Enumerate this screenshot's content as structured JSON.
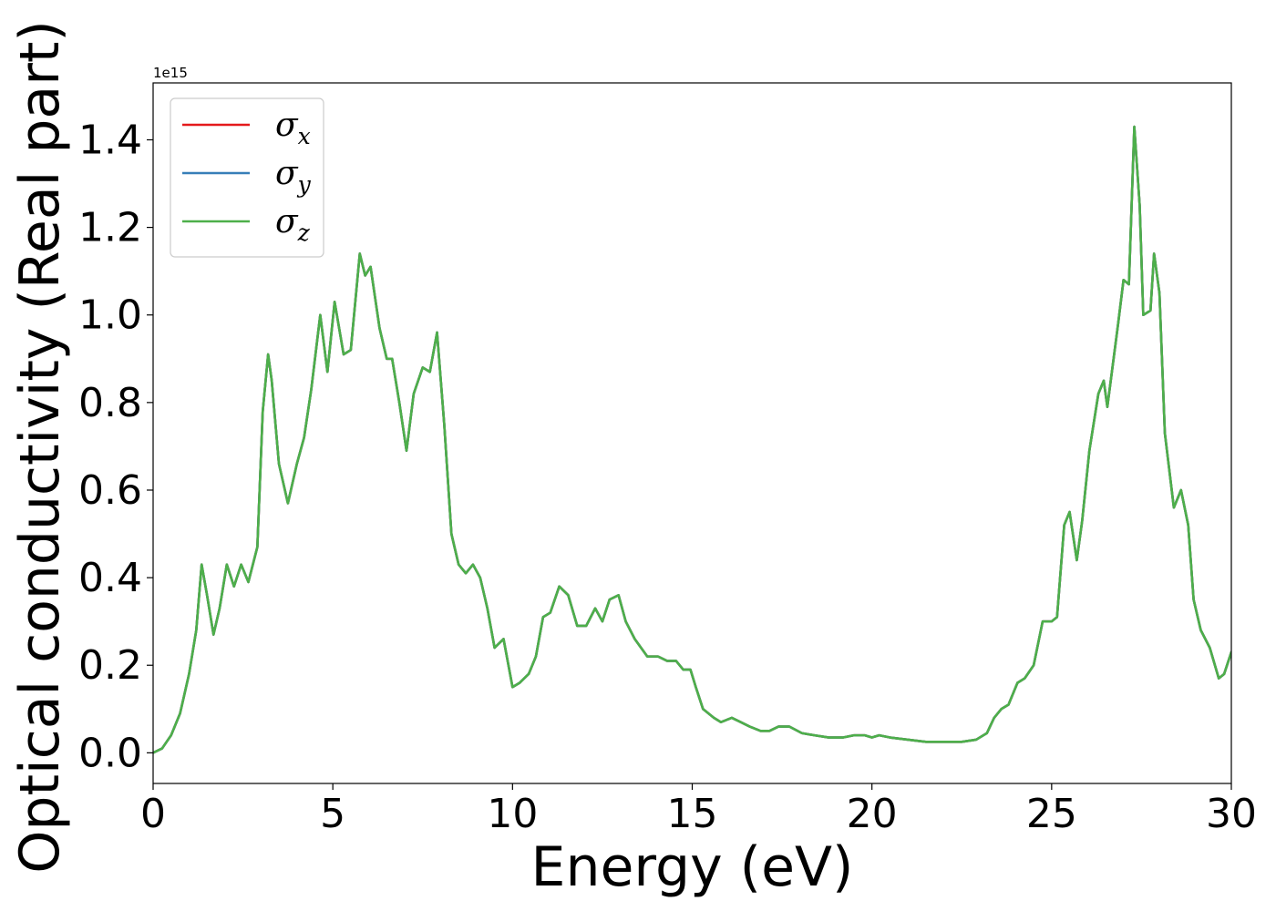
{
  "chart_data": {
    "type": "line",
    "xlabel": "Energy (eV)",
    "ylabel": "Optical conductivity (Real part)",
    "y_offset_label": "1e15",
    "y_scale": 1000000000000000.0,
    "xlim": [
      0,
      30
    ],
    "ylim": [
      -0.07,
      1.53
    ],
    "xticks": [
      0,
      5,
      10,
      15,
      20,
      25,
      30
    ],
    "xtick_labels": [
      "0",
      "5",
      "10",
      "15",
      "20",
      "25",
      "30"
    ],
    "yticks": [
      0.0,
      0.2,
      0.4,
      0.6,
      0.8,
      1.0,
      1.2,
      1.4
    ],
    "ytick_labels": [
      "0.0",
      "0.2",
      "0.4",
      "0.6",
      "0.8",
      "1.0",
      "1.2",
      "1.4"
    ],
    "grid": false,
    "legend_position": "top-left",
    "x": [
      0,
      0.25,
      0.5,
      0.75,
      1.0,
      1.2,
      1.35,
      1.5,
      1.68,
      1.85,
      2.05,
      2.25,
      2.45,
      2.65,
      2.9,
      3.05,
      3.2,
      3.3,
      3.5,
      3.75,
      4.0,
      4.2,
      4.4,
      4.65,
      4.85,
      5.05,
      5.3,
      5.5,
      5.75,
      5.9,
      6.05,
      6.3,
      6.5,
      6.65,
      6.85,
      7.05,
      7.25,
      7.5,
      7.7,
      7.9,
      8.1,
      8.3,
      8.5,
      8.7,
      8.9,
      9.1,
      9.3,
      9.5,
      9.75,
      10.0,
      10.2,
      10.45,
      10.65,
      10.85,
      11.05,
      11.3,
      11.55,
      11.8,
      12.05,
      12.3,
      12.5,
      12.7,
      12.95,
      13.15,
      13.4,
      13.75,
      14.05,
      14.3,
      14.55,
      14.75,
      14.95,
      15.1,
      15.3,
      15.6,
      15.8,
      16.1,
      16.35,
      16.6,
      16.9,
      17.15,
      17.4,
      17.7,
      18.05,
      18.4,
      18.8,
      19.2,
      19.5,
      19.8,
      20.0,
      20.2,
      20.5,
      21.0,
      21.5,
      22.0,
      22.5,
      22.9,
      23.2,
      23.4,
      23.6,
      23.8,
      24.05,
      24.25,
      24.5,
      24.75,
      25.0,
      25.15,
      25.35,
      25.5,
      25.7,
      25.85,
      26.05,
      26.3,
      26.45,
      26.55,
      26.85,
      27.0,
      27.15,
      27.3,
      27.45,
      27.55,
      27.75,
      27.85,
      28.0,
      28.15,
      28.4,
      28.6,
      28.8,
      28.95,
      29.15,
      29.4,
      29.65,
      29.8,
      30.0
    ],
    "series": [
      {
        "name": "σx",
        "color": "#e41a1c",
        "y": [
          0.0,
          0.01,
          0.04,
          0.09,
          0.18,
          0.28,
          0.43,
          0.36,
          0.27,
          0.33,
          0.43,
          0.38,
          0.43,
          0.39,
          0.47,
          0.78,
          0.91,
          0.85,
          0.66,
          0.57,
          0.66,
          0.72,
          0.83,
          1.0,
          0.87,
          1.03,
          0.91,
          0.92,
          1.14,
          1.09,
          1.11,
          0.97,
          0.9,
          0.9,
          0.8,
          0.69,
          0.82,
          0.88,
          0.87,
          0.96,
          0.75,
          0.5,
          0.43,
          0.41,
          0.43,
          0.4,
          0.33,
          0.24,
          0.26,
          0.15,
          0.16,
          0.18,
          0.22,
          0.31,
          0.32,
          0.38,
          0.36,
          0.29,
          0.29,
          0.33,
          0.3,
          0.35,
          0.36,
          0.3,
          0.26,
          0.22,
          0.22,
          0.21,
          0.21,
          0.19,
          0.19,
          0.15,
          0.1,
          0.08,
          0.07,
          0.08,
          0.07,
          0.06,
          0.05,
          0.05,
          0.06,
          0.06,
          0.045,
          0.04,
          0.035,
          0.035,
          0.04,
          0.04,
          0.035,
          0.04,
          0.035,
          0.03,
          0.025,
          0.025,
          0.025,
          0.03,
          0.045,
          0.08,
          0.1,
          0.11,
          0.16,
          0.17,
          0.2,
          0.3,
          0.3,
          0.31,
          0.52,
          0.55,
          0.44,
          0.53,
          0.69,
          0.82,
          0.85,
          0.79,
          0.98,
          1.08,
          1.07,
          1.43,
          1.25,
          1.0,
          1.01,
          1.14,
          1.05,
          0.73,
          0.56,
          0.6,
          0.52,
          0.35,
          0.28,
          0.24,
          0.17,
          0.18,
          0.23
        ]
      },
      {
        "name": "σy",
        "color": "#377eb8",
        "y": [
          0.0,
          0.01,
          0.04,
          0.09,
          0.18,
          0.28,
          0.43,
          0.36,
          0.27,
          0.33,
          0.43,
          0.38,
          0.43,
          0.39,
          0.47,
          0.78,
          0.91,
          0.85,
          0.66,
          0.57,
          0.66,
          0.72,
          0.83,
          1.0,
          0.87,
          1.03,
          0.91,
          0.92,
          1.14,
          1.09,
          1.11,
          0.97,
          0.9,
          0.9,
          0.8,
          0.69,
          0.82,
          0.88,
          0.87,
          0.96,
          0.75,
          0.5,
          0.43,
          0.41,
          0.43,
          0.4,
          0.33,
          0.24,
          0.26,
          0.15,
          0.16,
          0.18,
          0.22,
          0.31,
          0.32,
          0.38,
          0.36,
          0.29,
          0.29,
          0.33,
          0.3,
          0.35,
          0.36,
          0.3,
          0.26,
          0.22,
          0.22,
          0.21,
          0.21,
          0.19,
          0.19,
          0.15,
          0.1,
          0.08,
          0.07,
          0.08,
          0.07,
          0.06,
          0.05,
          0.05,
          0.06,
          0.06,
          0.045,
          0.04,
          0.035,
          0.035,
          0.04,
          0.04,
          0.035,
          0.04,
          0.035,
          0.03,
          0.025,
          0.025,
          0.025,
          0.03,
          0.045,
          0.08,
          0.1,
          0.11,
          0.16,
          0.17,
          0.2,
          0.3,
          0.3,
          0.31,
          0.52,
          0.55,
          0.44,
          0.53,
          0.69,
          0.82,
          0.85,
          0.79,
          0.98,
          1.08,
          1.07,
          1.43,
          1.25,
          1.0,
          1.01,
          1.14,
          1.05,
          0.73,
          0.56,
          0.6,
          0.52,
          0.35,
          0.28,
          0.24,
          0.17,
          0.18,
          0.23
        ]
      },
      {
        "name": "σz",
        "color": "#4daf4a",
        "y": [
          0.0,
          0.01,
          0.04,
          0.09,
          0.18,
          0.28,
          0.43,
          0.36,
          0.27,
          0.33,
          0.43,
          0.38,
          0.43,
          0.39,
          0.47,
          0.78,
          0.91,
          0.85,
          0.66,
          0.57,
          0.66,
          0.72,
          0.83,
          1.0,
          0.87,
          1.03,
          0.91,
          0.92,
          1.14,
          1.09,
          1.11,
          0.97,
          0.9,
          0.9,
          0.8,
          0.69,
          0.82,
          0.88,
          0.87,
          0.96,
          0.75,
          0.5,
          0.43,
          0.41,
          0.43,
          0.4,
          0.33,
          0.24,
          0.26,
          0.15,
          0.16,
          0.18,
          0.22,
          0.31,
          0.32,
          0.38,
          0.36,
          0.29,
          0.29,
          0.33,
          0.3,
          0.35,
          0.36,
          0.3,
          0.26,
          0.22,
          0.22,
          0.21,
          0.21,
          0.19,
          0.19,
          0.15,
          0.1,
          0.08,
          0.07,
          0.08,
          0.07,
          0.06,
          0.05,
          0.05,
          0.06,
          0.06,
          0.045,
          0.04,
          0.035,
          0.035,
          0.04,
          0.04,
          0.035,
          0.04,
          0.035,
          0.03,
          0.025,
          0.025,
          0.025,
          0.03,
          0.045,
          0.08,
          0.1,
          0.11,
          0.16,
          0.17,
          0.2,
          0.3,
          0.3,
          0.31,
          0.52,
          0.55,
          0.44,
          0.53,
          0.69,
          0.82,
          0.85,
          0.79,
          0.98,
          1.08,
          1.07,
          1.43,
          1.25,
          1.0,
          1.01,
          1.14,
          1.05,
          0.73,
          0.56,
          0.6,
          0.52,
          0.35,
          0.28,
          0.24,
          0.17,
          0.18,
          0.23
        ]
      }
    ],
    "legend": [
      {
        "symbol": "σ",
        "subscript": "x",
        "color": "#e41a1c"
      },
      {
        "symbol": "σ",
        "subscript": "y",
        "color": "#377eb8"
      },
      {
        "symbol": "σ",
        "subscript": "z",
        "color": "#4daf4a"
      }
    ]
  }
}
